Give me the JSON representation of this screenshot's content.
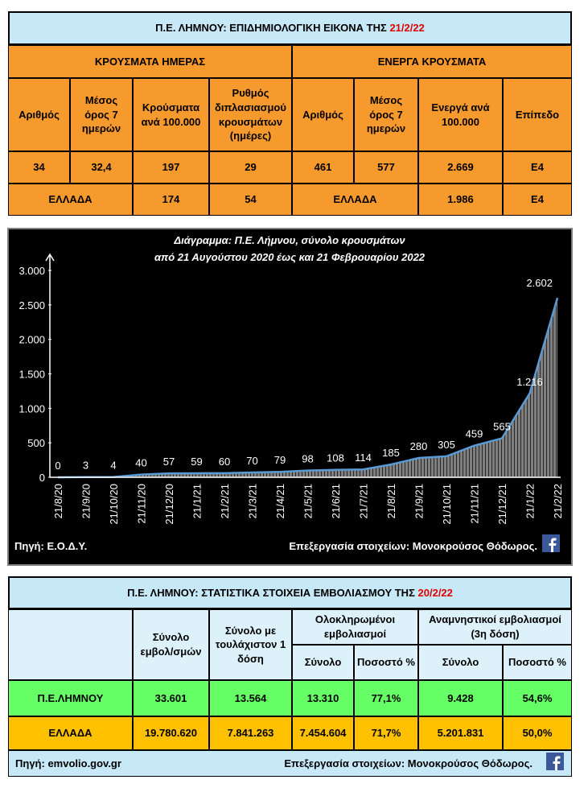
{
  "epi_table": {
    "title": "Π.Ε. ΛΗΜΝΟΥ: ΕΠΙΔΗΜΙΟΛΟΓΙΚΗ ΕΙΚΟΝΑ ΤΗΣ",
    "title_date": "21/2/22",
    "groups": [
      "ΚΡΟΥΣΜΑΤΑ ΗΜΕΡΑΣ",
      "ΕΝΕΡΓΑ ΚΡΟΥΣΜΑΤΑ"
    ],
    "headers": [
      "Αριθμός",
      "Μέσος όρος 7 ημερών",
      "Κρούσματα ανά 100.000",
      "Ρυθμός διπλασιασμού κρουσμάτων (ημέρες)",
      "Αριθμός",
      "Μέσος όρος 7 ημερών",
      "Ενεργά ανά 100.000",
      "Επίπεδο"
    ],
    "rows": [
      [
        "34",
        "32,4",
        "197",
        "29",
        "461",
        "577",
        "2.669",
        "Ε4"
      ],
      [
        "ΕΛΛΑΔΑ",
        "174",
        "54",
        "ΕΛΛΑΔΑ",
        "1.986",
        "Ε4"
      ]
    ]
  },
  "chart_data": {
    "type": "area",
    "title": "Διάγραμμα:  Π.Ε. Λήμνου, σύνολο κρουσμάτων",
    "subtitle": "από 21 Αυγούστου 2020 έως και 21 Φεβρουαρίου 2022",
    "categories": [
      "21/8/20",
      "21/9/20",
      "21/10/20",
      "21/11/20",
      "21/12/20",
      "21/1/21",
      "21/2/21",
      "21/3/21",
      "21/4/21",
      "21/5/21",
      "21/6/21",
      "21/7/21",
      "21/8/21",
      "21/9/21",
      "21/10/21",
      "21/11/21",
      "21/12/21",
      "21/1/22",
      "21/2/22"
    ],
    "values": [
      0,
      3,
      4,
      40,
      57,
      59,
      60,
      70,
      79,
      98,
      108,
      114,
      185,
      280,
      305,
      459,
      565,
      1216,
      2602
    ],
    "value_labels": [
      "0",
      "3",
      "4",
      "40",
      "57",
      "59",
      "60",
      "70",
      "79",
      "98",
      "108",
      "114",
      "185",
      "280",
      "305",
      "459",
      "565",
      "1.216",
      "2.602"
    ],
    "color": "#5b9bd5",
    "ylim": [
      0,
      3000
    ],
    "yticks": [
      0,
      500,
      {
        "value": 1000,
        "label": "1.000"
      },
      {
        "value": 1500,
        "label": "1.500"
      },
      {
        "value": 2000,
        "label": "2.000"
      },
      {
        "value": 2500,
        "label": "2.500"
      },
      {
        "value": 3000,
        "label": "3.000"
      }
    ],
    "source": "Πηγή: Ε.Ο.Δ.Υ.",
    "credit": "Επεξεργασία  στοιχείων: Μονοκρούσος Θόδωρος."
  },
  "vacc_table": {
    "title": "Π.Ε. ΛΗΜΝΟΥ: ΣΤΑΤΙΣΤΙΚΑ ΣΤΟΙΧΕΙΑ ΕΜΒΟΛΙΑΣΜΟΥ ΤΗΣ",
    "title_date": "20/2/22",
    "headers": [
      "Σύνολο εμβολ/σμών",
      "Σύνολο με τουλάχιστον 1 δόση",
      "Ολοκληρωμένοι εμβολιασμοί",
      "Αναμνηστικοί εμβολιασμοί (3η δόση)"
    ],
    "subheaders": [
      "Σύνολο",
      "Ποσοστό %",
      "Σύνολο",
      "Ποσοστό %"
    ],
    "rows": [
      [
        "Π.Ε.ΛΗΜΝΟΥ",
        "33.601",
        "13.564",
        "13.310",
        "77,1%",
        "9.428",
        "54,6%"
      ],
      [
        "ΕΛΛΑΔΑ",
        "19.780.620",
        "7.841.263",
        "7.454.604",
        "71,7%",
        "5.201.831",
        "50,0%"
      ]
    ],
    "source": "Πηγή: emvolio.gov.gr",
    "credit": "Επεξεργασία στοιχείων: Μονοκρούσος Θόδωρος."
  }
}
